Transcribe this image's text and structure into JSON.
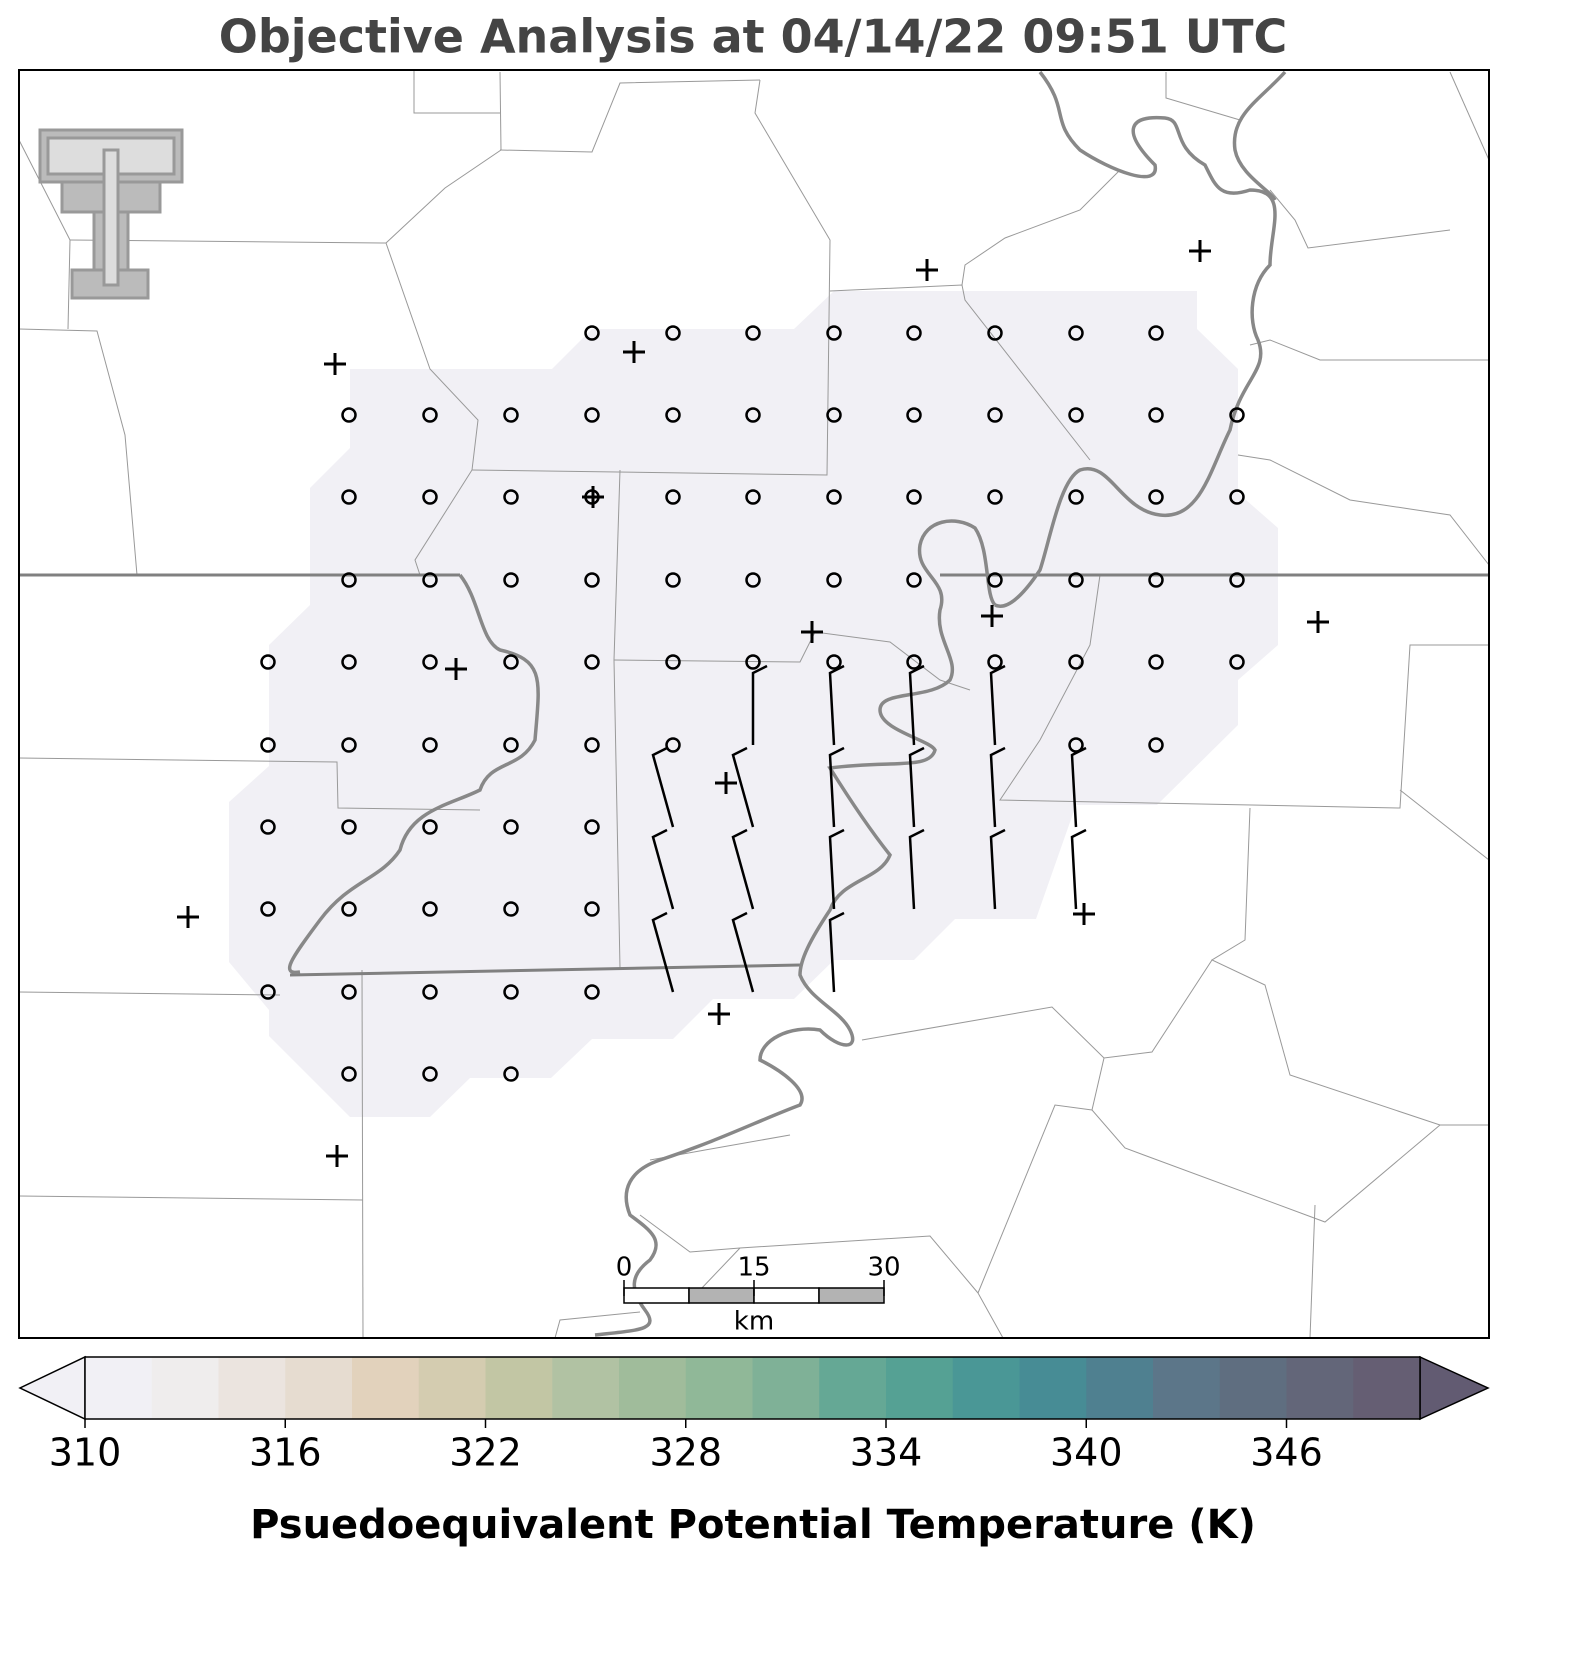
{
  "title": "Objective Analysis at 04/14/22 09:51 UTC",
  "colorbar": {
    "label": "Psuedoequivalent Potential Temperature (K)",
    "range": [
      310,
      350
    ],
    "ticks": [
      310,
      316,
      322,
      328,
      334,
      340,
      346
    ],
    "colors": [
      "#f1f0f5",
      "#efeded",
      "#ebe4df",
      "#e6dcd0",
      "#e2d2bc",
      "#d4ccb0",
      "#c2c6a4",
      "#b1c2a3",
      "#a0bc9b",
      "#90b898",
      "#7fb197",
      "#65a895",
      "#55a194",
      "#4a9796",
      "#478c95",
      "#4f8090",
      "#5c7689",
      "#5f6e80",
      "#636679",
      "#655e73"
    ],
    "under_color": "#f1f0f5",
    "over_color": "#625b72"
  },
  "scale_bar": {
    "ticks": [
      0,
      15,
      30
    ],
    "unit": "km"
  }
}
